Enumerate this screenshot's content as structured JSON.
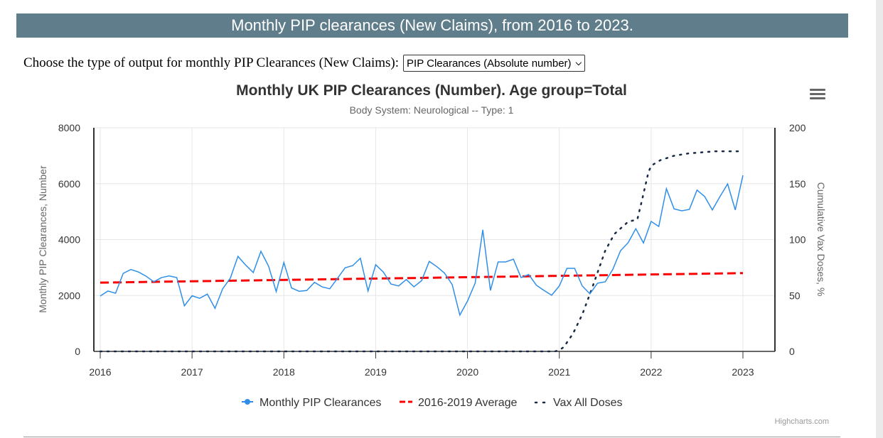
{
  "banner": {
    "title": "Monthly PIP clearances (New Claims), from 2016 to 2023."
  },
  "chooser": {
    "label": "Choose the type of output for monthly PIP Clearances (New Claims):",
    "selected": "PIP Clearances (Absolute number)"
  },
  "credits": "Highcharts.com",
  "colors": {
    "pip": "#2f8fe8",
    "avg": "#ff0000",
    "vax": "#1a2a44",
    "banner": "#5f7d8a"
  },
  "chart_data": {
    "type": "line",
    "title": "Monthly UK PIP Clearances (Number). Age group=Total",
    "subtitle": "Body System: Neurological -- Type: 1",
    "ylabel": "Monthly PIP Clearances, Number",
    "y2label": "Cumulative Vax Doses, %",
    "ylim": [
      0,
      8000
    ],
    "y2lim": [
      0,
      200
    ],
    "xlim": [
      2015.93,
      2023.35
    ],
    "xticks": [
      "2016",
      "2017",
      "2018",
      "2019",
      "2020",
      "2021",
      "2022",
      "2023"
    ],
    "yticks": [
      "0",
      "2000",
      "4000",
      "6000",
      "8000"
    ],
    "y2ticks": [
      "0",
      "50",
      "100",
      "150",
      "200"
    ],
    "legend_position": "bottom",
    "series": [
      {
        "name": "Monthly PIP Clearances",
        "start": 2016,
        "step": "month",
        "values": [
          1980,
          2160,
          2080,
          2790,
          2930,
          2840,
          2690,
          2490,
          2640,
          2700,
          2640,
          1630,
          1990,
          1900,
          2050,
          1540,
          2240,
          2620,
          3400,
          3090,
          2820,
          3580,
          3050,
          2140,
          3180,
          2270,
          2150,
          2180,
          2470,
          2310,
          2240,
          2610,
          2990,
          3070,
          3330,
          2160,
          3100,
          2840,
          2410,
          2340,
          2570,
          2310,
          2530,
          3220,
          3030,
          2800,
          2390,
          1300,
          1800,
          2440,
          4350,
          2180,
          3200,
          3200,
          3300,
          2640,
          2750,
          2370,
          2180,
          2010,
          2340,
          2970,
          2970,
          2340,
          2060,
          2440,
          2490,
          2940,
          3600,
          3890,
          4390,
          3880,
          4650,
          4470,
          5820,
          5100,
          5030,
          5080,
          5770,
          5540,
          5060,
          5540,
          5990,
          5060,
          6300
        ]
      },
      {
        "name": "2016-2019 Average",
        "x": [
          2016,
          2023
        ],
        "values": [
          2460,
          2800
        ]
      },
      {
        "name": "Vax All Doses",
        "axis": "right",
        "x": [
          2016,
          2020.95,
          2021.0,
          2021.05,
          2021.15,
          2021.25,
          2021.35,
          2021.5,
          2021.6,
          2021.75,
          2021.85,
          2021.9,
          2021.97,
          2022.0,
          2022.1,
          2022.25,
          2022.4,
          2022.55,
          2022.7,
          2023.0
        ],
        "values": [
          0,
          0,
          1,
          4,
          16,
          33,
          55,
          90,
          105,
          116,
          118,
          135,
          160,
          166,
          171,
          175,
          177,
          178,
          179,
          179
        ]
      }
    ]
  }
}
